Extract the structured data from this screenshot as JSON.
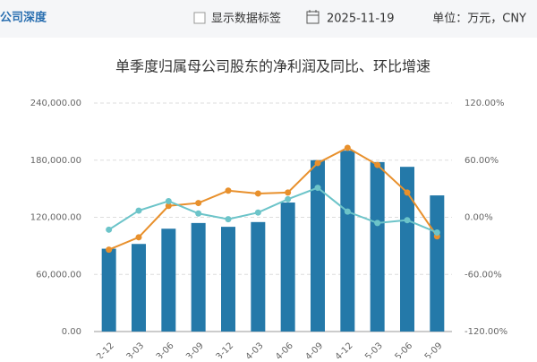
{
  "header": {
    "section": "公司深度",
    "checkbox_label": "显示数据标签",
    "date": "2025-11-19",
    "unit": "单位：万元，CNY"
  },
  "chart_data": {
    "type": "bar",
    "title": "单季度归属母公司股东的净利润及同比、环比增速",
    "categories": [
      "2-12",
      "3-03",
      "3-06",
      "3-09",
      "3-12",
      "4-03",
      "4-06",
      "4-09",
      "4-12",
      "5-03",
      "5-06",
      "5-09"
    ],
    "series": [
      {
        "type": "bar",
        "color": "#2479a9",
        "values": [
          87000,
          92000,
          108000,
          114000,
          110000,
          115000,
          135500,
          180000,
          190000,
          178000,
          173000,
          143000
        ]
      },
      {
        "type": "line",
        "axis": "y2",
        "color": "#e8902c",
        "values": [
          -34,
          -21,
          12,
          15,
          28,
          25,
          26,
          57,
          73,
          55,
          26,
          -20
        ]
      },
      {
        "type": "line",
        "axis": "y2",
        "color": "#6cc4c9",
        "values": [
          -13,
          7,
          17,
          4,
          -2,
          5,
          19,
          31,
          6,
          -6,
          -3,
          -16
        ]
      }
    ],
    "ylim": [
      0,
      240000
    ],
    "yticks": [
      {
        "value": 0,
        "label": "0.00"
      },
      {
        "value": 60000,
        "label": "60,000.00"
      },
      {
        "value": 120000,
        "label": "120,000.00"
      },
      {
        "value": 180000,
        "label": "180,000.00"
      },
      {
        "value": 240000,
        "label": "240,000.00"
      }
    ],
    "y2lim": [
      -120,
      120
    ],
    "y2ticks": [
      {
        "value": -120,
        "label": "-120.00%"
      },
      {
        "value": -60,
        "label": "-60.00%"
      },
      {
        "value": 0,
        "label": "0.00%"
      },
      {
        "value": 60,
        "label": "60.00%"
      },
      {
        "value": 120,
        "label": "120.00%"
      }
    ],
    "grid": true
  }
}
